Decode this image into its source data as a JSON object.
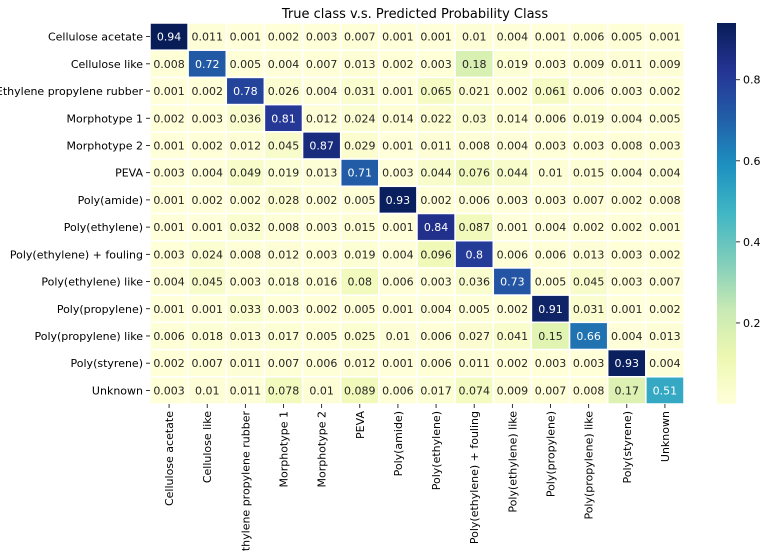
{
  "chart_data": {
    "type": "heatmap",
    "title": "True class v.s. Predicted Probability Class",
    "xlabel": "",
    "ylabel": "",
    "x_categories": [
      "Cellulose acetate",
      "Cellulose like",
      "Ethylene propylene rubber",
      "Morphotype 1",
      "Morphotype 2",
      "PEVA",
      "Poly(amide)",
      "Poly(ethylene)",
      "Poly(ethylene) + fouling",
      "Poly(ethylene) like",
      "Poly(propylene)",
      "Poly(propylene) like",
      "Poly(styrene)",
      "Unknown"
    ],
    "y_categories": [
      "Cellulose acetate",
      "Cellulose like",
      "Ethylene propylene rubber",
      "Morphotype 1",
      "Morphotype 2",
      "PEVA",
      "Poly(amide)",
      "Poly(ethylene)",
      "Poly(ethylene) + fouling",
      "Poly(ethylene) like",
      "Poly(propylene)",
      "Poly(propylene) like",
      "Poly(styrene)",
      "Unknown"
    ],
    "values": [
      [
        "0.94",
        "0.011",
        "0.001",
        "0.002",
        "0.003",
        "0.007",
        "0.001",
        "0.001",
        "0.01",
        "0.004",
        "0.001",
        "0.006",
        "0.005",
        "0.001"
      ],
      [
        "0.008",
        "0.72",
        "0.005",
        "0.004",
        "0.007",
        "0.013",
        "0.002",
        "0.003",
        "0.18",
        "0.019",
        "0.003",
        "0.009",
        "0.011",
        "0.009"
      ],
      [
        "0.001",
        "0.002",
        "0.78",
        "0.026",
        "0.004",
        "0.031",
        "0.001",
        "0.065",
        "0.021",
        "0.002",
        "0.061",
        "0.006",
        "0.003",
        "0.002"
      ],
      [
        "0.002",
        "0.003",
        "0.036",
        "0.81",
        "0.012",
        "0.024",
        "0.014",
        "0.022",
        "0.03",
        "0.014",
        "0.006",
        "0.019",
        "0.004",
        "0.005"
      ],
      [
        "0.001",
        "0.002",
        "0.012",
        "0.045",
        "0.87",
        "0.029",
        "0.001",
        "0.011",
        "0.008",
        "0.004",
        "0.003",
        "0.003",
        "0.008",
        "0.003"
      ],
      [
        "0.003",
        "0.004",
        "0.049",
        "0.019",
        "0.013",
        "0.71",
        "0.003",
        "0.044",
        "0.076",
        "0.044",
        "0.01",
        "0.015",
        "0.004",
        "0.004"
      ],
      [
        "0.001",
        "0.002",
        "0.002",
        "0.028",
        "0.002",
        "0.005",
        "0.93",
        "0.002",
        "0.006",
        "0.003",
        "0.003",
        "0.007",
        "0.002",
        "0.008"
      ],
      [
        "0.001",
        "0.001",
        "0.032",
        "0.008",
        "0.003",
        "0.015",
        "0.001",
        "0.84",
        "0.087",
        "0.001",
        "0.004",
        "0.002",
        "0.002",
        "0.001"
      ],
      [
        "0.003",
        "0.024",
        "0.008",
        "0.012",
        "0.003",
        "0.019",
        "0.004",
        "0.096",
        "0.8",
        "0.006",
        "0.006",
        "0.013",
        "0.003",
        "0.002"
      ],
      [
        "0.004",
        "0.045",
        "0.003",
        "0.018",
        "0.016",
        "0.08",
        "0.006",
        "0.003",
        "0.036",
        "0.73",
        "0.005",
        "0.045",
        "0.003",
        "0.007"
      ],
      [
        "0.001",
        "0.001",
        "0.033",
        "0.003",
        "0.002",
        "0.005",
        "0.001",
        "0.004",
        "0.005",
        "0.002",
        "0.91",
        "0.031",
        "0.001",
        "0.002"
      ],
      [
        "0.006",
        "0.018",
        "0.013",
        "0.017",
        "0.005",
        "0.025",
        "0.01",
        "0.006",
        "0.027",
        "0.041",
        "0.15",
        "0.66",
        "0.004",
        "0.013"
      ],
      [
        "0.002",
        "0.007",
        "0.011",
        "0.007",
        "0.006",
        "0.012",
        "0.001",
        "0.006",
        "0.011",
        "0.002",
        "0.003",
        "0.003",
        "0.93",
        "0.004"
      ],
      [
        "0.003",
        "0.01",
        "0.011",
        "0.078",
        "0.01",
        "0.089",
        "0.006",
        "0.017",
        "0.074",
        "0.009",
        "0.007",
        "0.008",
        "0.17",
        "0.51"
      ]
    ],
    "colorbar": {
      "vmin": 0,
      "vmax": 0.94,
      "ticks": [
        0.2,
        0.4,
        0.6,
        0.8
      ],
      "tick_labels": [
        "0.2",
        "0.4",
        "0.6",
        "0.8"
      ]
    },
    "colormap": [
      "#ffffd9",
      "#edf8b1",
      "#c7e9b4",
      "#7fcdbb",
      "#41b6c4",
      "#1d91c0",
      "#225ea8",
      "#253494",
      "#081d58"
    ],
    "cell_border_color": "#ffffff",
    "grid": false
  }
}
